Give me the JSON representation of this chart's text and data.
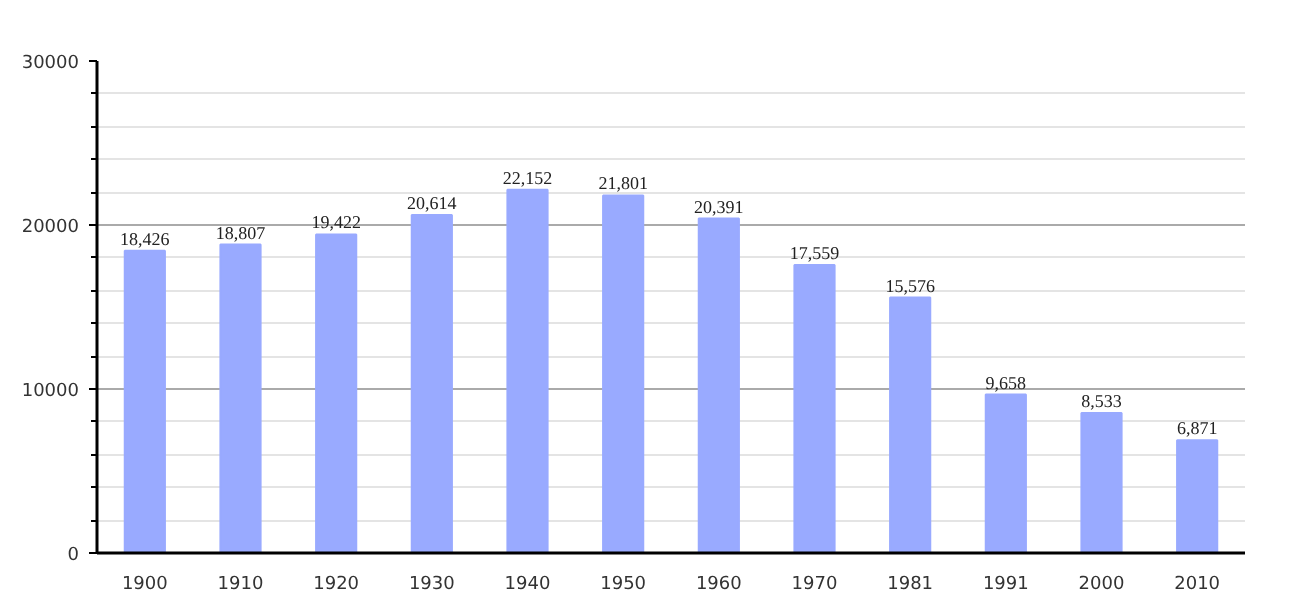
{
  "chart_data": {
    "type": "bar",
    "categories": [
      "1900",
      "1910",
      "1920",
      "1930",
      "1940",
      "1950",
      "1960",
      "1970",
      "1981",
      "1991",
      "2000",
      "2010"
    ],
    "values": [
      18426,
      18807,
      19422,
      20614,
      22152,
      21801,
      20391,
      17559,
      15576,
      9658,
      8533,
      6871
    ],
    "value_labels": [
      "18,426",
      "18,807",
      "19,422",
      "20,614",
      "22,152",
      "21,801",
      "20,391",
      "17,559",
      "15,576",
      "9,658",
      "8,533",
      "6,871"
    ],
    "color": "#99aaff",
    "ylim": [
      0,
      30000
    ],
    "yticks": [
      0,
      10000,
      20000,
      30000
    ],
    "grid": "y"
  }
}
